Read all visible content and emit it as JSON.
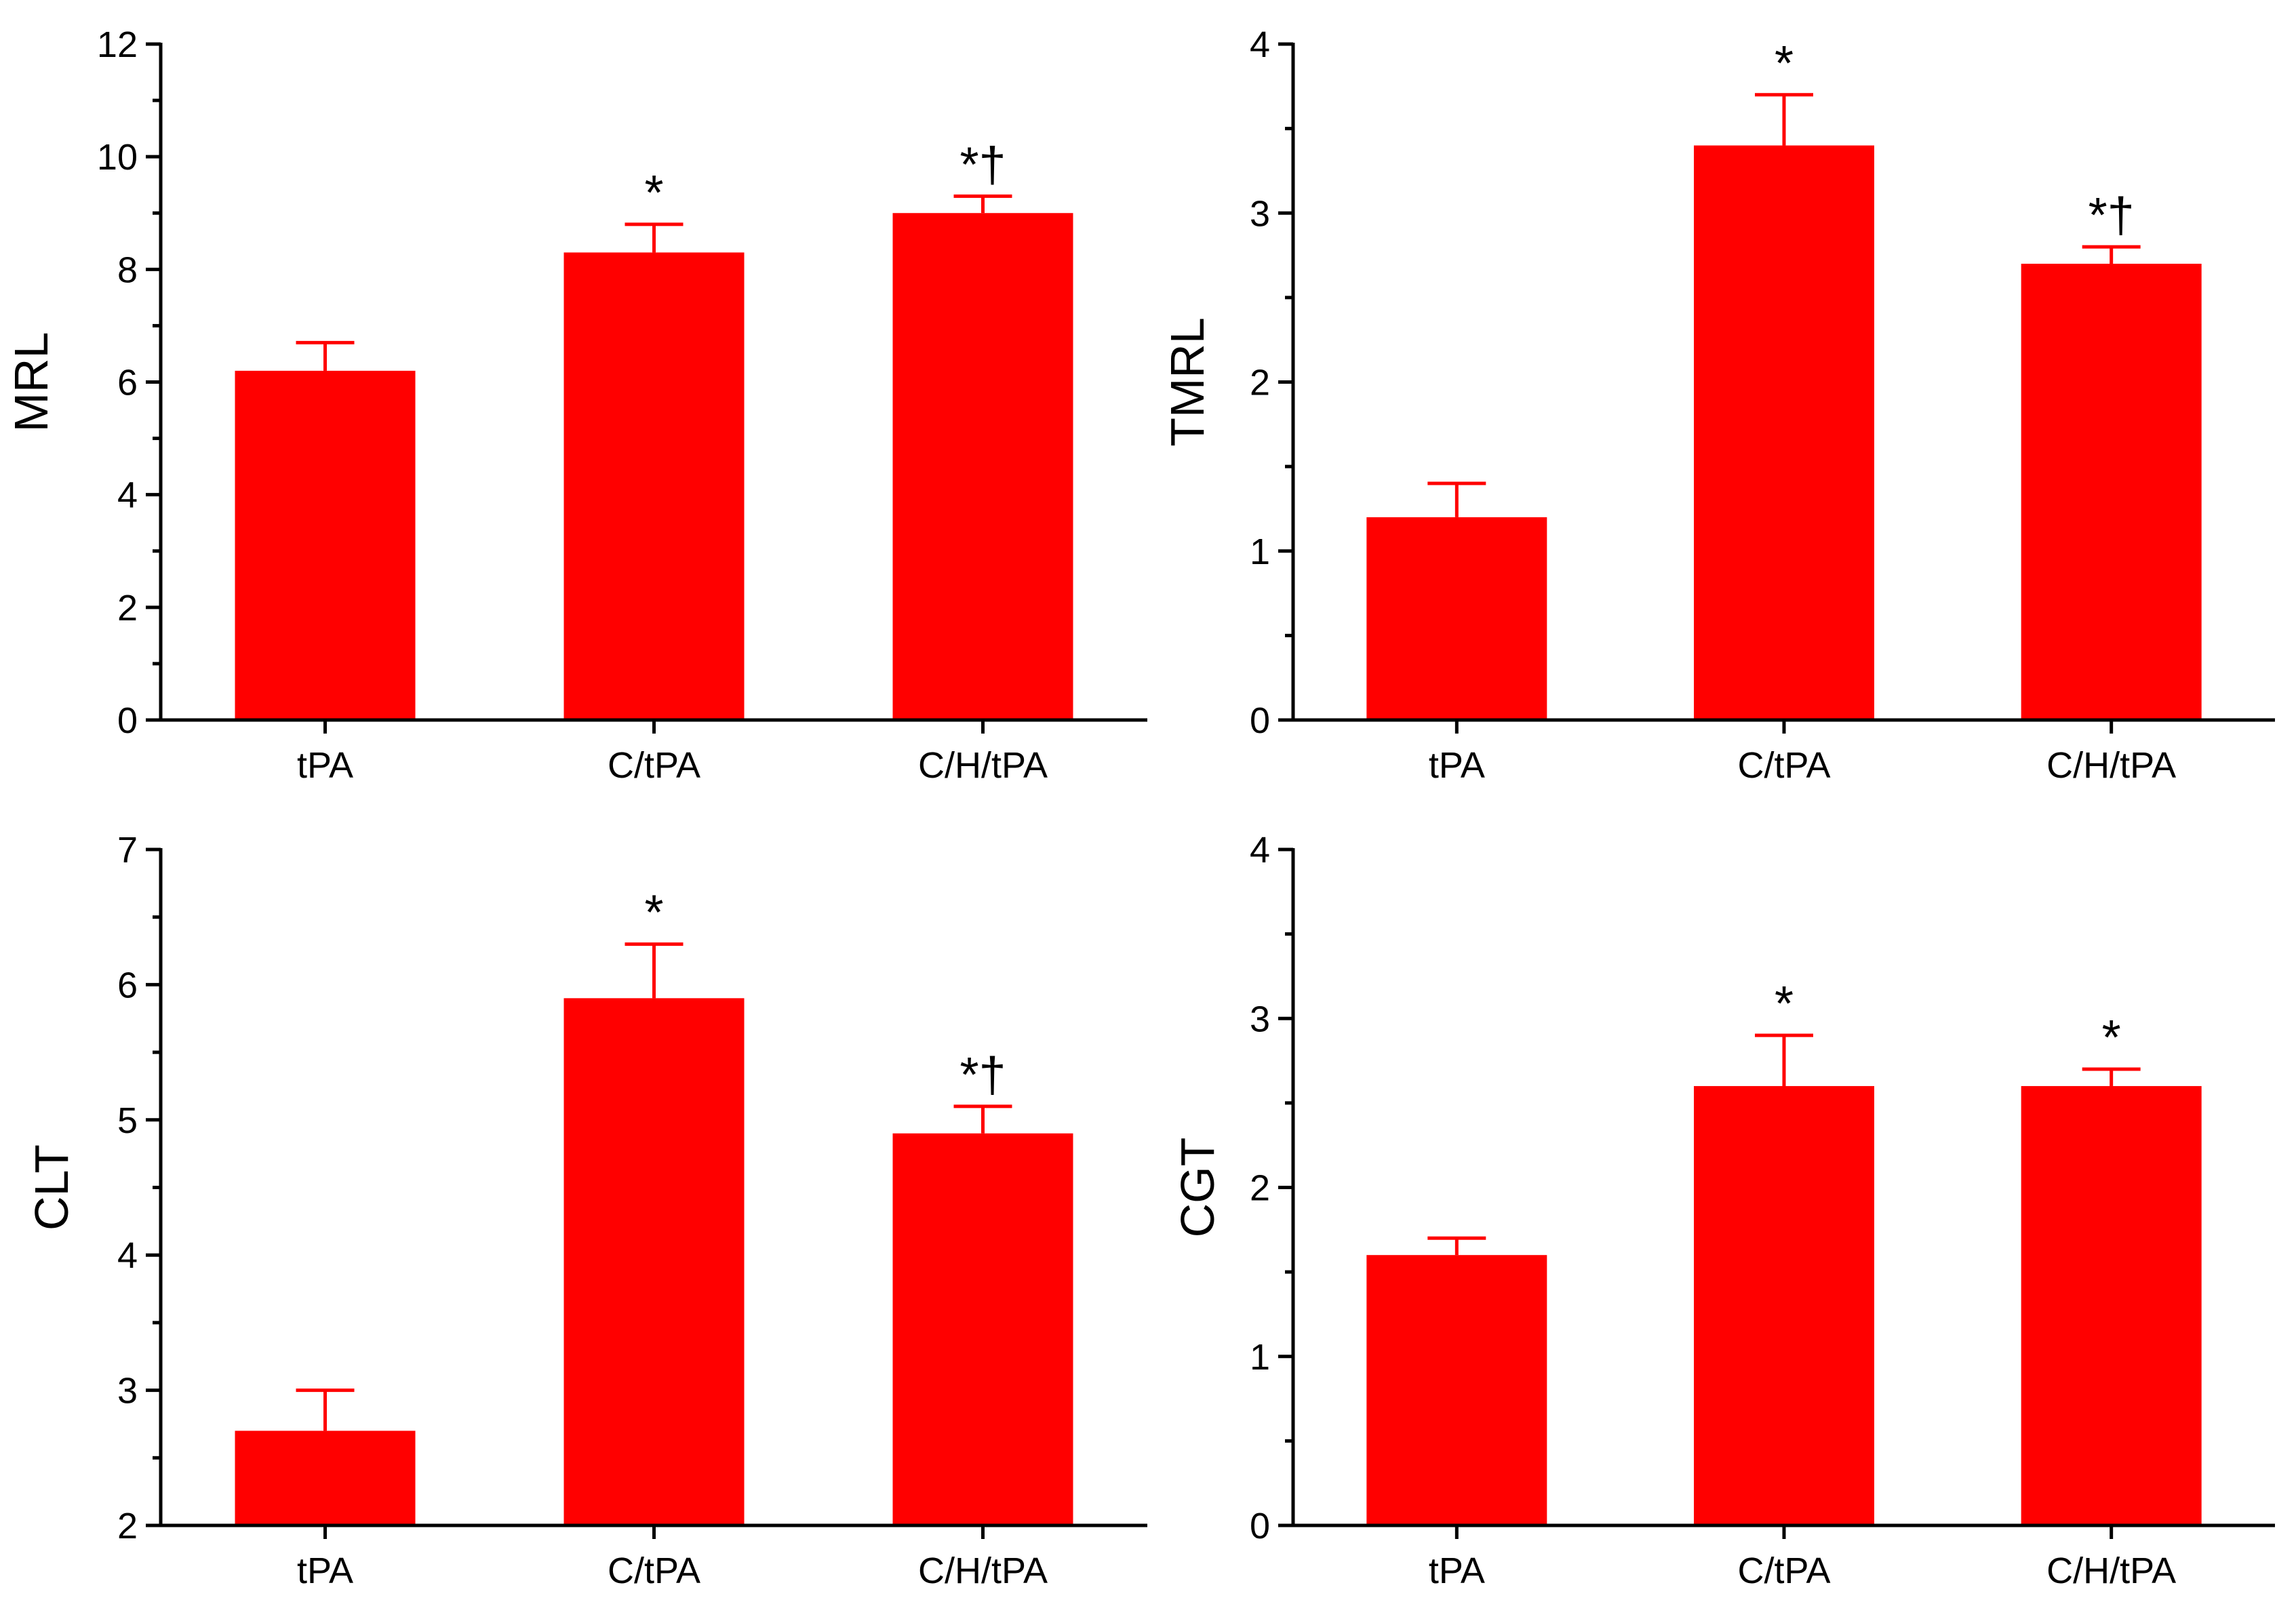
{
  "chart_data": [
    {
      "type": "bar",
      "ylabel": "MRL",
      "ylim": [
        0,
        12
      ],
      "yticks": [
        0,
        2,
        4,
        6,
        8,
        10,
        12
      ],
      "categories": [
        "tPA",
        "C/tPA",
        "C/H/tPA"
      ],
      "values": [
        6.2,
        8.3,
        9.0
      ],
      "errors": [
        0.5,
        0.5,
        0.3
      ],
      "annotations": [
        "",
        "*",
        "*†"
      ],
      "color": "#ff0000"
    },
    {
      "type": "bar",
      "ylabel": "TMRL",
      "ylim": [
        0,
        4
      ],
      "yticks": [
        0,
        1,
        2,
        3,
        4
      ],
      "categories": [
        "tPA",
        "C/tPA",
        "C/H/tPA"
      ],
      "values": [
        1.2,
        3.4,
        2.7
      ],
      "errors": [
        0.2,
        0.3,
        0.1
      ],
      "annotations": [
        "",
        "*",
        "*†"
      ],
      "color": "#ff0000"
    },
    {
      "type": "bar",
      "ylabel": "CLT",
      "ylim": [
        2,
        7
      ],
      "yticks": [
        2,
        3,
        4,
        5,
        6,
        7
      ],
      "categories": [
        "tPA",
        "C/tPA",
        "C/H/tPA"
      ],
      "values": [
        2.7,
        5.9,
        4.9
      ],
      "errors": [
        0.3,
        0.4,
        0.2
      ],
      "annotations": [
        "",
        "*",
        "*†"
      ],
      "color": "#ff0000"
    },
    {
      "type": "bar",
      "ylabel": "CGT",
      "ylim": [
        0,
        4
      ],
      "yticks": [
        0,
        1,
        2,
        3,
        4
      ],
      "categories": [
        "tPA",
        "C/tPA",
        "C/H/tPA"
      ],
      "values": [
        1.6,
        2.6,
        2.6
      ],
      "errors": [
        0.1,
        0.3,
        0.1
      ],
      "annotations": [
        "",
        "*",
        "*"
      ],
      "color": "#ff0000"
    }
  ]
}
